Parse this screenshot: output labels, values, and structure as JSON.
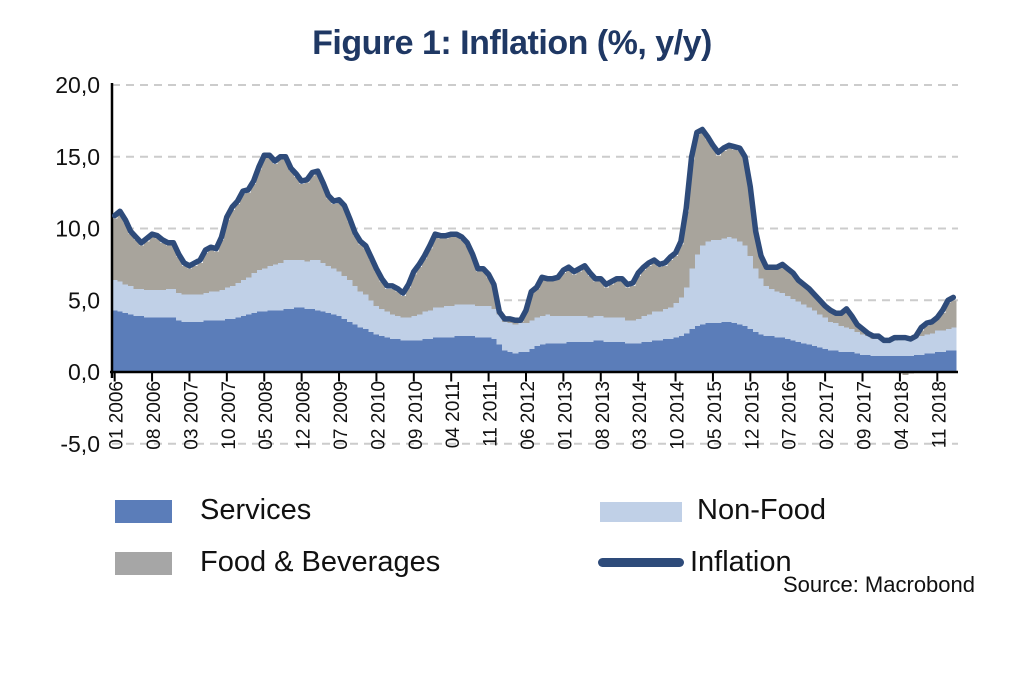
{
  "title": "Figure 1: Inflation (%, y/y)",
  "source": "Source: Macrobond",
  "legend": {
    "services": "Services",
    "non_food": "Non-Food",
    "food_beverages": "Food & Beverages",
    "inflation": "Inflation"
  },
  "colors": {
    "services": "#5b7db9",
    "non_food": "#c0d0e7",
    "food_beverages": "#a8a49c",
    "food_beverages_legend": "#a6a6a6",
    "inflation_line": "#2e4b7a",
    "title_text": "#1f3864",
    "gridline": "#cccccc",
    "axis": "#000000",
    "tick_text": "#111111"
  },
  "chart_data": {
    "type": "area",
    "subtype": "stacked monthly contribution areas with overlaid total line",
    "x_start": "2006-01",
    "x_end": "2019-02",
    "x_tick_labels": [
      "01 2006",
      "08 2006",
      "03 2007",
      "10 2007",
      "05 2008",
      "12 2008",
      "07 2009",
      "02 2010",
      "09 2010",
      "04 2011",
      "11 2011",
      "06 2012",
      "01 2013",
      "08 2013",
      "03 2014",
      "10 2014",
      "05 2015",
      "12 2015",
      "07 2016",
      "02 2017",
      "09 2017",
      "04 2018",
      "11 2018"
    ],
    "x_tick_month_step": 7,
    "ylim": [
      -5,
      20
    ],
    "y_ticks": [
      {
        "label": "20,0",
        "value": 20
      },
      {
        "label": "15,0",
        "value": 15
      },
      {
        "label": "10,0",
        "value": 10
      },
      {
        "label": "5,0",
        "value": 5
      },
      {
        "label": "0,0",
        "value": 0
      },
      {
        "label": "-5,0",
        "value": -5
      }
    ],
    "grid": "dashed horizontal at 20, 15, 10, 5 and -5; solid axis at 0",
    "legend_position": "bottom, two columns",
    "series": [
      {
        "name": "Services",
        "type": "area",
        "values": [
          4.3,
          4.2,
          4.1,
          4.0,
          3.9,
          3.9,
          3.8,
          3.8,
          3.8,
          3.8,
          3.8,
          3.8,
          3.6,
          3.5,
          3.5,
          3.5,
          3.5,
          3.6,
          3.6,
          3.6,
          3.6,
          3.7,
          3.7,
          3.8,
          3.9,
          4.0,
          4.1,
          4.2,
          4.2,
          4.3,
          4.3,
          4.3,
          4.4,
          4.4,
          4.5,
          4.5,
          4.4,
          4.4,
          4.3,
          4.2,
          4.1,
          4.0,
          3.9,
          3.7,
          3.5,
          3.3,
          3.1,
          3.0,
          2.8,
          2.6,
          2.5,
          2.4,
          2.3,
          2.3,
          2.2,
          2.2,
          2.2,
          2.2,
          2.3,
          2.3,
          2.4,
          2.4,
          2.4,
          2.4,
          2.5,
          2.5,
          2.5,
          2.5,
          2.4,
          2.4,
          2.4,
          2.3,
          1.9,
          1.5,
          1.4,
          1.3,
          1.4,
          1.4,
          1.6,
          1.8,
          1.9,
          2.0,
          2.0,
          2.0,
          2.0,
          2.1,
          2.1,
          2.1,
          2.1,
          2.1,
          2.2,
          2.2,
          2.1,
          2.1,
          2.1,
          2.1,
          2.0,
          2.0,
          2.0,
          2.1,
          2.1,
          2.2,
          2.2,
          2.3,
          2.3,
          2.4,
          2.5,
          2.7,
          3.0,
          3.2,
          3.3,
          3.4,
          3.4,
          3.4,
          3.5,
          3.5,
          3.4,
          3.3,
          3.2,
          3.0,
          2.8,
          2.6,
          2.5,
          2.5,
          2.4,
          2.4,
          2.3,
          2.2,
          2.1,
          2.0,
          1.9,
          1.8,
          1.7,
          1.6,
          1.5,
          1.5,
          1.4,
          1.4,
          1.4,
          1.3,
          1.2,
          1.2,
          1.1,
          1.1,
          1.1,
          1.1,
          1.1,
          1.1,
          1.1,
          1.1,
          1.2,
          1.2,
          1.3,
          1.3,
          1.4,
          1.4,
          1.5,
          1.5
        ]
      },
      {
        "name": "Non-Food",
        "type": "area",
        "values": [
          2.1,
          2.1,
          2.0,
          2.0,
          1.9,
          1.9,
          1.9,
          1.9,
          1.9,
          1.9,
          2.0,
          2.0,
          1.9,
          1.9,
          1.9,
          1.9,
          1.9,
          1.9,
          2.0,
          2.0,
          2.1,
          2.2,
          2.3,
          2.4,
          2.5,
          2.6,
          2.8,
          2.9,
          3.0,
          3.1,
          3.2,
          3.3,
          3.4,
          3.4,
          3.3,
          3.3,
          3.3,
          3.4,
          3.5,
          3.4,
          3.3,
          3.2,
          3.1,
          3.0,
          2.9,
          2.7,
          2.5,
          2.4,
          2.2,
          2.0,
          1.9,
          1.8,
          1.7,
          1.6,
          1.6,
          1.6,
          1.7,
          1.8,
          1.9,
          2.0,
          2.1,
          2.1,
          2.2,
          2.2,
          2.2,
          2.2,
          2.2,
          2.2,
          2.2,
          2.2,
          2.2,
          2.1,
          2.1,
          2.0,
          2.0,
          2.0,
          2.0,
          2.0,
          2.0,
          2.0,
          2.0,
          2.0,
          1.9,
          1.9,
          1.9,
          1.8,
          1.8,
          1.8,
          1.8,
          1.7,
          1.7,
          1.7,
          1.7,
          1.7,
          1.7,
          1.7,
          1.6,
          1.6,
          1.7,
          1.8,
          1.9,
          2.0,
          2.0,
          2.1,
          2.2,
          2.4,
          2.7,
          3.2,
          4.2,
          5.0,
          5.5,
          5.7,
          5.8,
          5.8,
          5.8,
          5.9,
          5.9,
          5.8,
          5.6,
          5.1,
          4.4,
          3.9,
          3.5,
          3.3,
          3.2,
          3.1,
          3.0,
          2.9,
          2.8,
          2.7,
          2.6,
          2.5,
          2.3,
          2.2,
          2.0,
          1.9,
          1.8,
          1.7,
          1.6,
          1.5,
          1.4,
          1.3,
          1.2,
          1.2,
          1.1,
          1.1,
          1.1,
          1.1,
          1.1,
          1.1,
          1.2,
          1.3,
          1.3,
          1.4,
          1.5,
          1.5,
          1.5,
          1.6
        ]
      },
      {
        "name": "Food & Beverages",
        "type": "area",
        "values": [
          4.3,
          4.7,
          4.3,
          3.6,
          3.4,
          3.0,
          3.4,
          3.7,
          3.6,
          3.3,
          3.0,
          3.0,
          2.5,
          2.0,
          1.8,
          2.0,
          2.2,
          2.8,
          2.9,
          2.8,
          3.5,
          4.7,
          5.3,
          5.5,
          6.0,
          5.9,
          6.2,
          7.0,
          7.7,
          7.5,
          7.0,
          7.2,
          7.0,
          6.2,
          5.8,
          5.3,
          5.5,
          5.9,
          6.0,
          5.4,
          4.7,
          4.5,
          4.8,
          4.7,
          4.1,
          3.5,
          3.3,
          3.2,
          2.8,
          2.4,
          1.9,
          1.6,
          1.8,
          1.7,
          1.5,
          2.1,
          2.9,
          3.3,
          3.7,
          4.3,
          4.9,
          4.8,
          4.7,
          4.8,
          4.7,
          4.5,
          4.1,
          3.3,
          2.4,
          2.4,
          2.0,
          1.5,
          0.2,
          0.1,
          0.2,
          0.2,
          0.1,
          0.8,
          1.9,
          2.0,
          2.6,
          2.4,
          2.5,
          2.6,
          3.0,
          3.2,
          2.9,
          3.1,
          3.3,
          2.9,
          2.4,
          2.4,
          2.1,
          2.3,
          2.5,
          2.5,
          2.3,
          2.4,
          3.0,
          3.2,
          3.4,
          3.4,
          3.1,
          3.0,
          3.3,
          3.3,
          3.7,
          5.3,
          7.6,
          8.3,
          7.9,
          7.1,
          6.4,
          5.9,
          6.1,
          6.2,
          6.2,
          6.3,
          6.0,
          4.6,
          2.4,
          1.5,
          1.2,
          1.4,
          1.6,
          1.9,
          1.8,
          1.7,
          1.4,
          1.3,
          1.2,
          1.0,
          0.9,
          0.7,
          0.7,
          0.6,
          0.8,
          1.2,
          0.8,
          0.4,
          0.3,
          0.1,
          0.1,
          0.1,
          0.0,
          0.0,
          0.1,
          -0.1,
          -0.2,
          -0.1,
          0.1,
          0.4,
          0.6,
          0.7,
          0.8,
          1.2,
          1.8,
          1.9
        ]
      },
      {
        "name": "Inflation",
        "type": "line",
        "values": [
          10.9,
          11.2,
          10.6,
          9.8,
          9.4,
          9.0,
          9.3,
          9.6,
          9.5,
          9.2,
          9.0,
          9.0,
          8.2,
          7.6,
          7.4,
          7.6,
          7.8,
          8.5,
          8.7,
          8.6,
          9.4,
          10.8,
          11.5,
          11.9,
          12.6,
          12.7,
          13.3,
          14.3,
          15.1,
          15.1,
          14.7,
          15.0,
          15.0,
          14.2,
          13.8,
          13.3,
          13.4,
          13.9,
          14.0,
          13.2,
          12.3,
          11.9,
          12.0,
          11.6,
          10.7,
          9.7,
          9.1,
          8.8,
          8.0,
          7.2,
          6.5,
          6.0,
          6.0,
          5.8,
          5.5,
          6.1,
          7.0,
          7.5,
          8.1,
          8.8,
          9.6,
          9.5,
          9.5,
          9.6,
          9.6,
          9.4,
          9.0,
          8.2,
          7.2,
          7.2,
          6.8,
          6.1,
          4.2,
          3.7,
          3.7,
          3.6,
          3.6,
          4.3,
          5.6,
          5.9,
          6.6,
          6.5,
          6.5,
          6.6,
          7.1,
          7.3,
          7.0,
          7.2,
          7.4,
          6.9,
          6.5,
          6.5,
          6.1,
          6.3,
          6.5,
          6.5,
          6.1,
          6.2,
          6.9,
          7.3,
          7.6,
          7.8,
          7.5,
          7.6,
          8.0,
          8.3,
          9.1,
          11.4,
          15.0,
          16.7,
          16.9,
          16.4,
          15.8,
          15.3,
          15.6,
          15.8,
          15.7,
          15.6,
          15.0,
          12.9,
          9.8,
          8.1,
          7.3,
          7.3,
          7.3,
          7.5,
          7.2,
          6.9,
          6.4,
          6.1,
          5.8,
          5.4,
          5.0,
          4.6,
          4.3,
          4.1,
          4.1,
          4.4,
          3.9,
          3.3,
          3.0,
          2.7,
          2.5,
          2.5,
          2.2,
          2.2,
          2.4,
          2.4,
          2.4,
          2.3,
          2.5,
          3.1,
          3.4,
          3.5,
          3.8,
          4.3,
          5.0,
          5.2
        ]
      }
    ]
  }
}
